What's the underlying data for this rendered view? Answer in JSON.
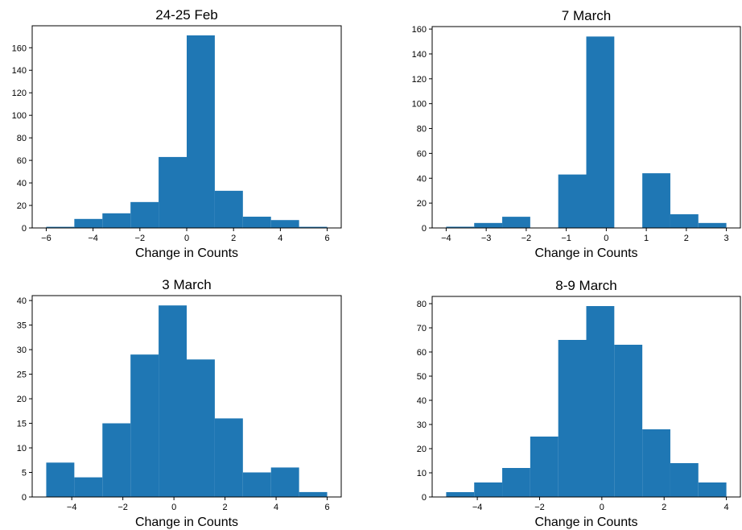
{
  "chart_data": [
    {
      "type": "histogram",
      "title": "24-25 Feb",
      "xlabel": "Change in Counts",
      "ylabel": "",
      "bins": [
        -6,
        -4.8,
        -3.6,
        -2.4,
        -1.2,
        0,
        1.2,
        2.4,
        3.6,
        4.8,
        6
      ],
      "values": [
        1,
        8,
        13,
        23,
        63,
        171,
        33,
        10,
        7,
        1
      ],
      "xlim": [
        -6.6,
        6.6
      ],
      "ylim": [
        0,
        179.5
      ],
      "xticks": [
        -6,
        -4,
        -2,
        0,
        2,
        4,
        6
      ],
      "xtick_labels": [
        "−6",
        "−4",
        "−2",
        "0",
        "2",
        "4",
        "6"
      ],
      "yticks": [
        0,
        20,
        40,
        60,
        80,
        100,
        120,
        140,
        160
      ],
      "ytick_labels": [
        "0",
        "20",
        "40",
        "60",
        "80",
        "100",
        "120",
        "140",
        "160"
      ],
      "color": "#1f77b4",
      "grid": false
    },
    {
      "type": "histogram",
      "title": "7 March",
      "xlabel": "Change in Counts",
      "ylabel": "",
      "bins": [
        -4,
        -3.3,
        -2.6,
        -1.9,
        -1.2,
        -0.5,
        0.2,
        0.9,
        1.6,
        2.3,
        3
      ],
      "values": [
        1,
        4,
        9,
        0,
        43,
        154,
        0,
        44,
        11,
        4
      ],
      "xlim": [
        -4.35,
        3.35
      ],
      "ylim": [
        0,
        162
      ],
      "xticks": [
        -4,
        -3,
        -2,
        -1,
        0,
        1,
        2,
        3
      ],
      "xtick_labels": [
        "−4",
        "−3",
        "−2",
        "−1",
        "0",
        "1",
        "2",
        "3"
      ],
      "yticks": [
        0,
        20,
        40,
        60,
        80,
        100,
        120,
        140,
        160
      ],
      "ytick_labels": [
        "0",
        "20",
        "40",
        "60",
        "80",
        "100",
        "120",
        "140",
        "160"
      ],
      "color": "#1f77b4",
      "grid": false
    },
    {
      "type": "histogram",
      "title": "3 March",
      "xlabel": "Change in Counts",
      "ylabel": "",
      "bins": [
        -5,
        -3.9,
        -2.8,
        -1.7,
        -0.6,
        0.5,
        1.6,
        2.7,
        3.8,
        4.9,
        6
      ],
      "values": [
        7,
        4,
        15,
        29,
        39,
        28,
        16,
        5,
        6,
        1
      ],
      "xlim": [
        -5.55,
        6.55
      ],
      "ylim": [
        0,
        41
      ],
      "xticks": [
        -4,
        -2,
        0,
        2,
        4,
        6
      ],
      "xtick_labels": [
        "−4",
        "−2",
        "0",
        "2",
        "4",
        "6"
      ],
      "yticks": [
        0,
        5,
        10,
        15,
        20,
        25,
        30,
        35,
        40
      ],
      "ytick_labels": [
        "0",
        "5",
        "10",
        "15",
        "20",
        "25",
        "30",
        "35",
        "40"
      ],
      "color": "#1f77b4",
      "grid": false
    },
    {
      "type": "histogram",
      "title": "8-9 March",
      "xlabel": "Change in Counts",
      "ylabel": "",
      "bins": [
        -5,
        -4.1,
        -3.2,
        -2.3,
        -1.4,
        -0.5,
        0.4,
        1.3,
        2.2,
        3.1,
        4
      ],
      "values": [
        2,
        6,
        12,
        25,
        65,
        79,
        63,
        28,
        14,
        6
      ],
      "xlim": [
        -5.45,
        4.45
      ],
      "ylim": [
        0,
        83
      ],
      "xticks": [
        -4,
        -2,
        0,
        2,
        4
      ],
      "xtick_labels": [
        "−4",
        "−2",
        "0",
        "2",
        "4"
      ],
      "yticks": [
        0,
        10,
        20,
        30,
        40,
        50,
        60,
        70,
        80
      ],
      "ytick_labels": [
        "0",
        "10",
        "20",
        "30",
        "40",
        "50",
        "60",
        "70",
        "80"
      ],
      "color": "#1f77b4",
      "grid": false
    }
  ]
}
